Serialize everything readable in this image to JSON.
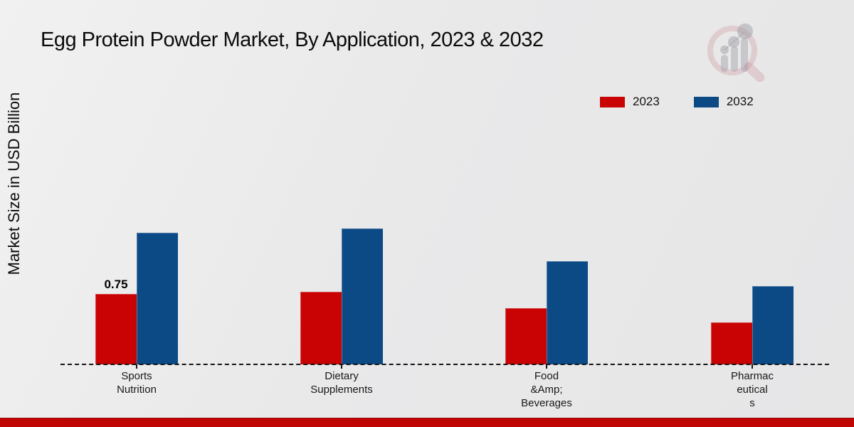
{
  "page": {
    "title": "Egg Protein Powder Market, By Application, 2023 & 2032",
    "ylabel": "Market Size in USD Billion"
  },
  "legend": [
    {
      "label": "2023",
      "color": "#c90303"
    },
    {
      "label": "2032",
      "color": "#0c4a85"
    }
  ],
  "icons": {
    "watermark": "magnifier-bar-chart-logo"
  },
  "chart_data": {
    "type": "bar",
    "title": "Egg Protein Powder Market, By Application, 2023 & 2032",
    "ylabel": "Market Size in USD Billion",
    "xlabel": "",
    "categories": [
      "Sports Nutrition",
      "Dietary Supplements",
      "Food &Amp; Beverages",
      "Pharmaceuticals"
    ],
    "category_label_lines": [
      [
        "Sports",
        "Nutrition"
      ],
      [
        "Dietary",
        "Supplements"
      ],
      [
        "Food",
        "&Amp;",
        "Beverages"
      ],
      [
        "Pharmac",
        "eutical",
        "s"
      ]
    ],
    "series": [
      {
        "name": "2023",
        "color": "#c90303",
        "values": [
          0.75,
          0.77,
          0.6,
          0.45
        ]
      },
      {
        "name": "2032",
        "color": "#0c4a85",
        "values": [
          1.4,
          1.45,
          1.1,
          0.83
        ]
      }
    ],
    "data_labels": [
      {
        "series": "2023",
        "category": "Sports Nutrition",
        "text": "0.75"
      }
    ],
    "ylim": [
      0,
      1.6
    ],
    "gridlines": false,
    "axis_line_style": "dashed",
    "legend_position": "top-right"
  },
  "footer": {
    "accent_color": "#c00505"
  }
}
